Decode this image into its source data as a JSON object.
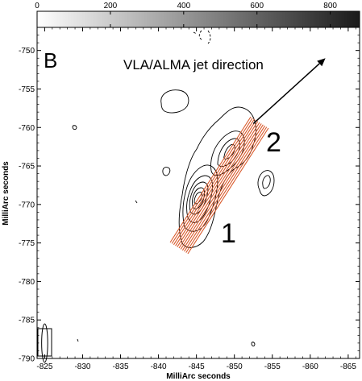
{
  "chart_data": {
    "type": "contour",
    "panel_label": "B",
    "xlabel": "MilliArc seconds",
    "ylabel": "MilliArc seconds",
    "xlim": [
      -824,
      -866.5
    ],
    "ylim": [
      -790,
      -747
    ],
    "x_ticks": [
      -825,
      -830,
      -835,
      -840,
      -845,
      -850,
      -855,
      -860,
      -865
    ],
    "y_ticks": [
      -750,
      -755,
      -760,
      -765,
      -770,
      -775,
      -780,
      -785,
      -790
    ],
    "colorbar": {
      "range": [
        0,
        880
      ],
      "ticks": [
        0,
        200,
        400,
        600,
        800
      ],
      "colors": [
        "#ffffff",
        "#1a1a1a"
      ]
    },
    "annotations": {
      "arrow_label": "VLA/ALMA jet direction",
      "component_1": "1",
      "component_2": "2"
    },
    "jet_direction_arrow": {
      "from": [
        -852.5,
        -759.5
      ],
      "to": [
        -862,
        -751
      ]
    },
    "emission_peaks": [
      {
        "name": "1",
        "x": -845,
        "y": -768.3
      },
      {
        "name": "2",
        "x": -849.8,
        "y": -763.5
      }
    ],
    "beam": {
      "x": -825,
      "y": -788,
      "width": 0.8,
      "height": 2.0
    },
    "colors": {
      "jet_lines": "#d9592a",
      "contour": "#000000"
    }
  }
}
